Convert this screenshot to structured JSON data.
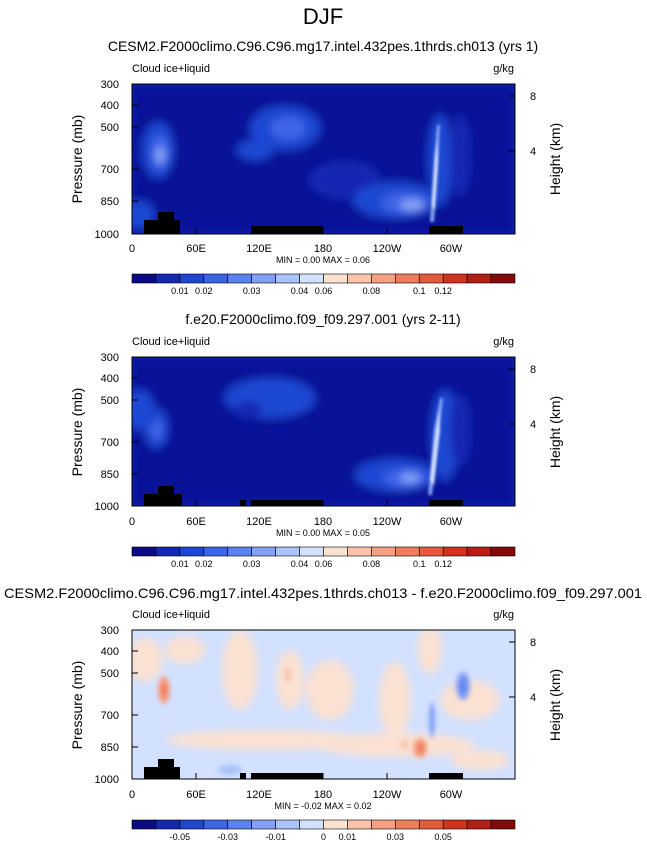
{
  "figure_title": "DJF",
  "chart_data": [
    {
      "type": "heatmap",
      "title": "CESM2.F2000climo.C96.C96.mg17.intel.432pes.1thrds.ch013 (yrs 1)",
      "variable_label": "Cloud ice+liquid",
      "units_label": "g/kg",
      "ylabel": "Pressure (mb)",
      "y2label": "Height (km)",
      "x_ticks": [
        "0",
        "60E",
        "120E",
        "180",
        "120W",
        "60W"
      ],
      "y_ticks": [
        "300",
        "400",
        "500",
        "700",
        "850",
        "1000"
      ],
      "y2_ticks": [
        "8",
        "4"
      ],
      "stats": "MIN =  0.00  MAX =  0.06",
      "colorbar": {
        "labels": [
          "0.01",
          "0.02",
          "0.03",
          "0.04",
          "0.06",
          "0.08",
          "0.1",
          "0.12"
        ],
        "colors": [
          "#0a0a82",
          "#1428b4",
          "#1e46d2",
          "#3c64e6",
          "#5a82f0",
          "#82a0f5",
          "#aac3fa",
          "#d2e1ff",
          "#fae1d2",
          "#fac3aa",
          "#f5a082",
          "#f07d5a",
          "#e65a3c",
          "#d2321e",
          "#b41e14",
          "#820a0a"
        ]
      },
      "max": 0.06
    },
    {
      "type": "heatmap",
      "title": "f.e20.F2000climo.f09_f09.297.001 (yrs 2-11)",
      "variable_label": "Cloud ice+liquid",
      "units_label": "g/kg",
      "ylabel": "Pressure (mb)",
      "y2label": "Height (km)",
      "x_ticks": [
        "0",
        "60E",
        "120E",
        "180",
        "120W",
        "60W"
      ],
      "y_ticks": [
        "300",
        "400",
        "500",
        "700",
        "850",
        "1000"
      ],
      "y2_ticks": [
        "8",
        "4"
      ],
      "stats": "MIN =  0.00  MAX =  0.05",
      "colorbar": {
        "labels": [
          "0.01",
          "0.02",
          "0.03",
          "0.04",
          "0.06",
          "0.08",
          "0.1",
          "0.12"
        ],
        "colors": [
          "#0a0a82",
          "#1428b4",
          "#1e46d2",
          "#3c64e6",
          "#5a82f0",
          "#82a0f5",
          "#aac3fa",
          "#d2e1ff",
          "#fae1d2",
          "#fac3aa",
          "#f5a082",
          "#f07d5a",
          "#e65a3c",
          "#d2321e",
          "#b41e14",
          "#820a0a"
        ]
      },
      "max": 0.05
    },
    {
      "type": "heatmap",
      "title": "CESM2.F2000climo.C96.C96.mg17.intel.432pes.1thrds.ch013 - f.e20.F2000climo.f09_f09.297.001",
      "variable_label": "Cloud ice+liquid",
      "units_label": "g/kg",
      "ylabel": "Pressure (mb)",
      "y2label": "Height (km)",
      "x_ticks": [
        "0",
        "60E",
        "120E",
        "180",
        "120W",
        "60W"
      ],
      "y_ticks": [
        "300",
        "400",
        "500",
        "700",
        "850",
        "1000"
      ],
      "y2_ticks": [
        "8",
        "4"
      ],
      "stats": "MIN = -0.02  MAX =  0.02",
      "colorbar": {
        "labels": [
          "-0.05",
          "-0.03",
          "-0.01",
          "0",
          "0.01",
          "0.03",
          "0.05"
        ],
        "colors": [
          "#0a0a82",
          "#1428b4",
          "#1e46d2",
          "#3c64e6",
          "#5a82f0",
          "#82a0f5",
          "#aac3fa",
          "#d2e1ff",
          "#fae1d2",
          "#fac3aa",
          "#f5a082",
          "#f07d5a",
          "#e65a3c",
          "#d2321e",
          "#b41e14",
          "#820a0a"
        ]
      },
      "min": -0.02,
      "max": 0.02
    }
  ]
}
